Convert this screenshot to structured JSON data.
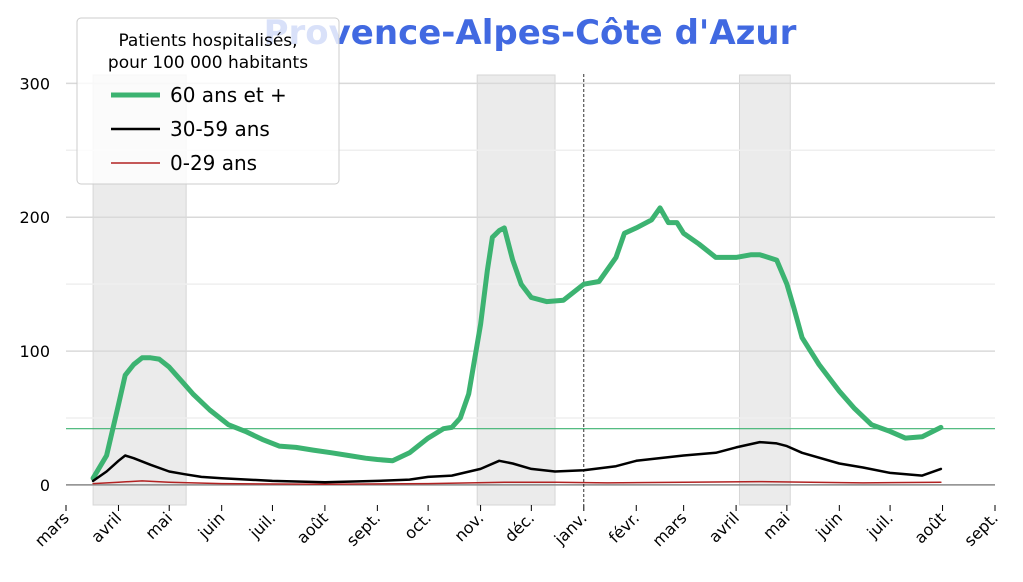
{
  "chart_data": {
    "type": "line",
    "title": "Provence-Alpes-Côte d'Azur",
    "title_color": "#4169e1",
    "legend": {
      "title_lines": [
        "Patients hospitalisés,",
        "pour 100 000 habitants"
      ],
      "placement": "top-left"
    },
    "xlabel": "",
    "ylabel": "",
    "ylim": [
      -15,
      310
    ],
    "y_ticks": [
      0,
      100,
      200,
      300
    ],
    "y_tick_labels": [
      "0",
      "100",
      "200",
      "300"
    ],
    "y_grid": true,
    "x_range": [
      "2020-03-01",
      "2021-09-01"
    ],
    "x_ticks": [
      "2020-03-01",
      "2020-04-01",
      "2020-05-01",
      "2020-06-01",
      "2020-07-01",
      "2020-08-01",
      "2020-09-01",
      "2020-10-01",
      "2020-11-01",
      "2020-12-01",
      "2021-01-01",
      "2021-02-01",
      "2021-03-01",
      "2021-04-01",
      "2021-05-01",
      "2021-06-01",
      "2021-07-01",
      "2021-08-01",
      "2021-09-01"
    ],
    "x_tick_labels": [
      "mars",
      "avril",
      "mai",
      "juin",
      "juil.",
      "août",
      "sept.",
      "oct.",
      "nov.",
      "déc.",
      "janv.",
      "févr.",
      "mars",
      "avril",
      "mai",
      "juin",
      "juil.",
      "août",
      "sept."
    ],
    "vertical_marker": "2021-01-01",
    "reference_line": {
      "y": 42,
      "color": "#3cb371"
    },
    "shaded_periods": [
      [
        "2020-03-17",
        "2020-05-11"
      ],
      [
        "2020-10-30",
        "2020-12-15"
      ],
      [
        "2021-04-03",
        "2021-05-03"
      ]
    ],
    "series": [
      {
        "name": "60 ans et +",
        "color": "#3cb371",
        "x": [
          "2020-03-17",
          "2020-03-25",
          "2020-04-01",
          "2020-04-05",
          "2020-04-10",
          "2020-04-15",
          "2020-04-20",
          "2020-04-25",
          "2020-05-01",
          "2020-05-08",
          "2020-05-15",
          "2020-05-25",
          "2020-06-05",
          "2020-06-15",
          "2020-06-25",
          "2020-07-05",
          "2020-07-15",
          "2020-07-25",
          "2020-08-05",
          "2020-08-15",
          "2020-08-25",
          "2020-09-01",
          "2020-09-10",
          "2020-09-20",
          "2020-10-01",
          "2020-10-10",
          "2020-10-15",
          "2020-10-20",
          "2020-10-25",
          "2020-11-01",
          "2020-11-05",
          "2020-11-08",
          "2020-11-12",
          "2020-11-15",
          "2020-11-20",
          "2020-11-25",
          "2020-12-01",
          "2020-12-10",
          "2020-12-20",
          "2021-01-01",
          "2021-01-10",
          "2021-01-20",
          "2021-01-25",
          "2021-02-01",
          "2021-02-10",
          "2021-02-15",
          "2021-02-20",
          "2021-02-25",
          "2021-03-01",
          "2021-03-10",
          "2021-03-20",
          "2021-04-01",
          "2021-04-10",
          "2021-04-15",
          "2021-04-20",
          "2021-04-25",
          "2021-05-01",
          "2021-05-05",
          "2021-05-10",
          "2021-05-20",
          "2021-06-01",
          "2021-06-10",
          "2021-06-20",
          "2021-07-01",
          "2021-07-10",
          "2021-07-20",
          "2021-07-31"
        ],
        "values": [
          5,
          22,
          60,
          82,
          90,
          95,
          95,
          94,
          88,
          78,
          68,
          56,
          45,
          40,
          34,
          29,
          28,
          26,
          24,
          22,
          20,
          19,
          18,
          24,
          35,
          42,
          43,
          50,
          68,
          120,
          160,
          185,
          190,
          192,
          168,
          150,
          140,
          137,
          138,
          150,
          152,
          170,
          188,
          192,
          198,
          207,
          196,
          196,
          188,
          180,
          170,
          170,
          172,
          172,
          170,
          168,
          150,
          133,
          110,
          90,
          70,
          57,
          45,
          40,
          35,
          36,
          43
        ]
      },
      {
        "name": "30-59 ans",
        "color": "#000000",
        "x": [
          "2020-03-17",
          "2020-03-25",
          "2020-04-01",
          "2020-04-05",
          "2020-04-10",
          "2020-04-20",
          "2020-05-01",
          "2020-05-10",
          "2020-05-20",
          "2020-06-01",
          "2020-07-01",
          "2020-08-01",
          "2020-09-01",
          "2020-09-20",
          "2020-10-01",
          "2020-10-15",
          "2020-11-01",
          "2020-11-12",
          "2020-11-20",
          "2020-12-01",
          "2020-12-15",
          "2021-01-01",
          "2021-01-20",
          "2021-02-01",
          "2021-03-01",
          "2021-03-20",
          "2021-04-01",
          "2021-04-15",
          "2021-04-25",
          "2021-05-01",
          "2021-05-10",
          "2021-06-01",
          "2021-06-15",
          "2021-07-01",
          "2021-07-20",
          "2021-07-31"
        ],
        "values": [
          3,
          10,
          18,
          22,
          20,
          15,
          10,
          8,
          6,
          5,
          3,
          2,
          3,
          4,
          6,
          7,
          12,
          18,
          16,
          12,
          10,
          11,
          14,
          18,
          22,
          24,
          28,
          32,
          31,
          29,
          24,
          16,
          13,
          9,
          7,
          12
        ]
      },
      {
        "name": "0-29 ans",
        "color": "#b22222",
        "x": [
          "2020-03-17",
          "2020-04-01",
          "2020-04-15",
          "2020-05-01",
          "2020-06-01",
          "2020-08-01",
          "2020-10-01",
          "2020-11-15",
          "2020-12-15",
          "2021-01-15",
          "2021-03-01",
          "2021-04-15",
          "2021-05-15",
          "2021-06-15",
          "2021-07-31"
        ],
        "values": [
          1,
          2,
          3,
          2,
          1,
          0.5,
          1,
          2,
          2,
          1.5,
          2,
          2.5,
          2,
          1.5,
          2
        ]
      }
    ]
  }
}
